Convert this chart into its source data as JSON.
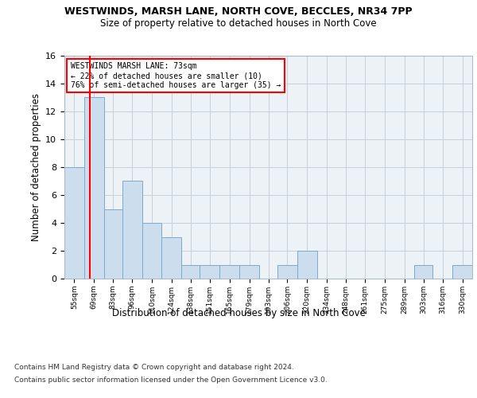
{
  "title": "WESTWINDS, MARSH LANE, NORTH COVE, BECCLES, NR34 7PP",
  "subtitle": "Size of property relative to detached houses in North Cove",
  "xlabel": "Distribution of detached houses by size in North Cove",
  "ylabel": "Number of detached properties",
  "bar_color": "#ccdded",
  "bar_edge_color": "#7aaacc",
  "red_line_x": 73,
  "annotation_text": "WESTWINDS MARSH LANE: 73sqm\n← 22% of detached houses are smaller (10)\n76% of semi-detached houses are larger (35) →",
  "annotation_box_color": "white",
  "annotation_box_edge": "red",
  "bins": [
    55,
    69,
    83,
    96,
    110,
    124,
    138,
    151,
    165,
    179,
    193,
    206,
    220,
    234,
    248,
    261,
    275,
    289,
    303,
    316,
    330
  ],
  "counts": [
    8,
    13,
    5,
    7,
    4,
    3,
    1,
    1,
    1,
    1,
    0,
    1,
    2,
    0,
    0,
    0,
    0,
    0,
    1,
    0,
    1
  ],
  "ylim": [
    0,
    16
  ],
  "yticks": [
    0,
    2,
    4,
    6,
    8,
    10,
    12,
    14,
    16
  ],
  "footer1": "Contains HM Land Registry data © Crown copyright and database right 2024.",
  "footer2": "Contains public sector information licensed under the Open Government Licence v3.0.",
  "bg_color": "#edf2f7",
  "grid_color": "#c5d0dc"
}
